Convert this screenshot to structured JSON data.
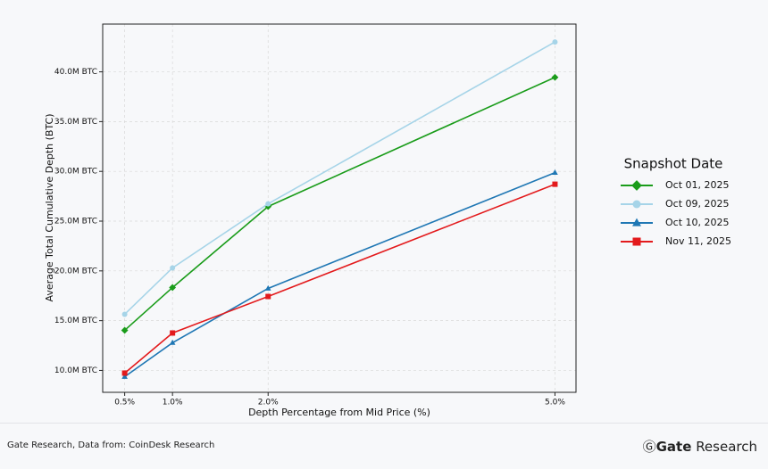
{
  "chart_data": {
    "type": "line",
    "x_label": "Depth Percentage from Mid Price (%)",
    "y_label": "Average Total Cumulative Depth (BTC)",
    "legend_title": "Snapshot Date",
    "legend_position": "right",
    "grid": true,
    "x": [
      0.5,
      1.0,
      2.0,
      5.0
    ],
    "xlim": [
      0.27,
      5.22
    ],
    "xticks": [
      {
        "value": 0.5,
        "label": "0.5%"
      },
      {
        "value": 1.0,
        "label": "1.0%"
      },
      {
        "value": 2.0,
        "label": "2.0%"
      },
      {
        "value": 5.0,
        "label": "5.0%"
      }
    ],
    "ylim": [
      7.8,
      44.8
    ],
    "yticks": [
      {
        "value": 10,
        "label": "10.0M BTC"
      },
      {
        "value": 15,
        "label": "15.0M BTC"
      },
      {
        "value": 20,
        "label": "20.0M BTC"
      },
      {
        "value": 25,
        "label": "25.0M BTC"
      },
      {
        "value": 30,
        "label": "30.0M BTC"
      },
      {
        "value": 35,
        "label": "35.0M BTC"
      },
      {
        "value": 40,
        "label": "40.0M BTC"
      }
    ],
    "series": [
      {
        "name": "Oct 01, 2025",
        "color": "#1a9c1a",
        "marker": "diamond",
        "values": [
          14.03,
          18.33,
          26.47,
          39.45
        ]
      },
      {
        "name": "Oct 09, 2025",
        "color": "#a6d4e8",
        "marker": "circle",
        "values": [
          15.64,
          20.3,
          26.74,
          43.0
        ]
      },
      {
        "name": "Oct 10, 2025",
        "color": "#1f77b4",
        "marker": "triangle",
        "values": [
          9.37,
          12.78,
          18.24,
          29.87
        ]
      },
      {
        "name": "Nov 11, 2025",
        "color": "#e31a1c",
        "marker": "square",
        "values": [
          9.73,
          13.76,
          17.43,
          28.71
        ]
      }
    ]
  },
  "footer": {
    "source": "Gate Research, Data from: CoinDesk Research",
    "brand_name": "Gate",
    "brand_suffix": "Research"
  }
}
